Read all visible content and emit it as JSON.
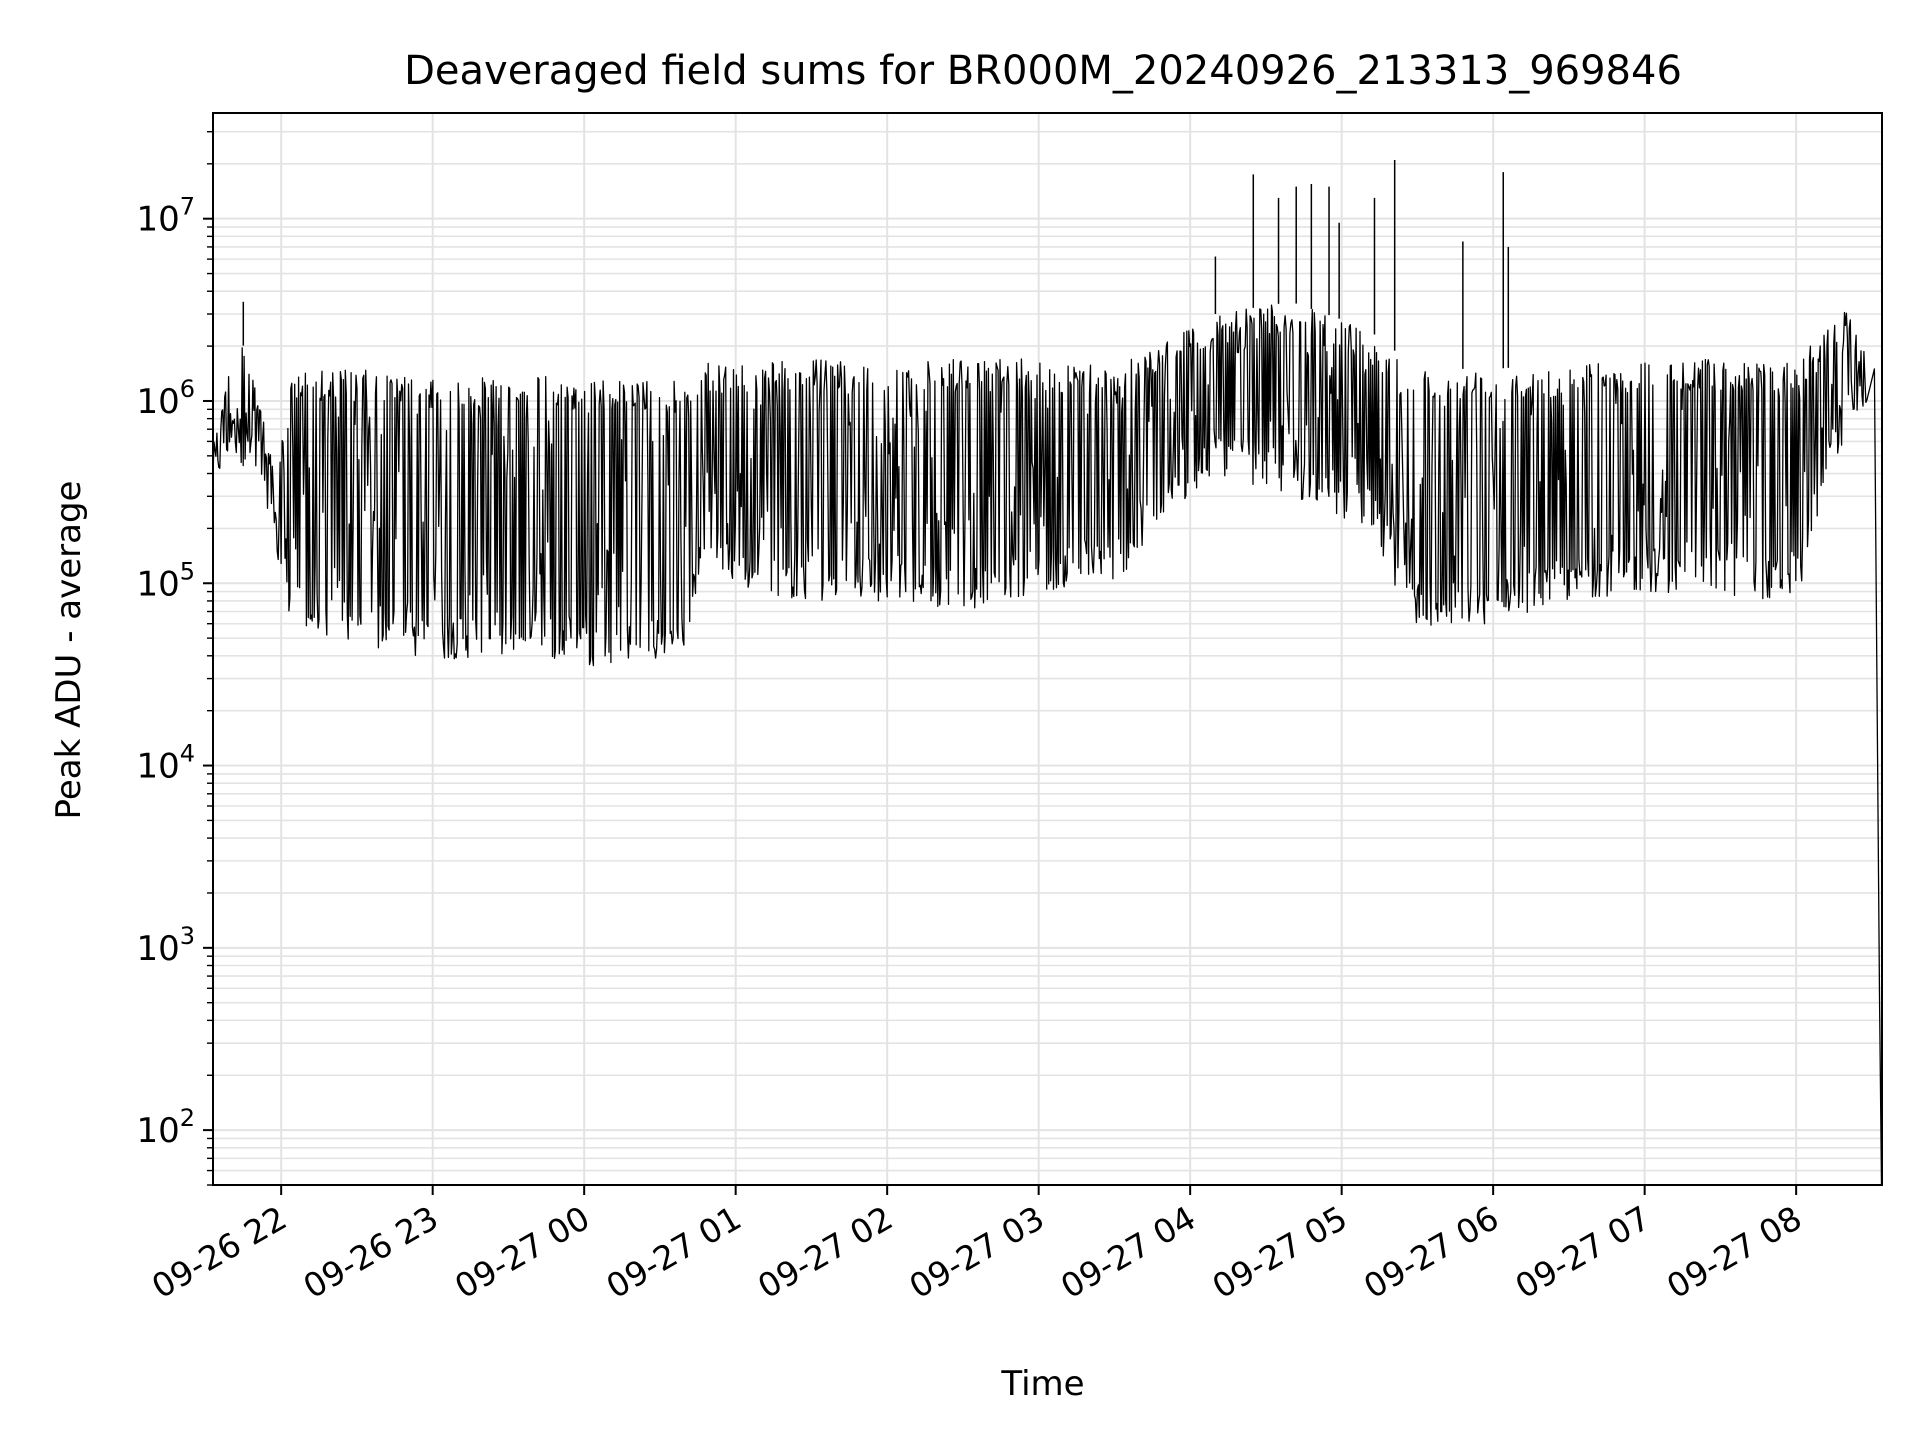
{
  "chart_data": {
    "type": "line",
    "title": "Deaveraged field sums for BR000M_20240926_213313_969846",
    "xlabel": "Time",
    "ylabel": "Peak ADU - average",
    "x_range": [
      "2024-09-26 21:33",
      "2024-09-27 08:34"
    ],
    "ylim": [
      50,
      38000000
    ],
    "yscale": "log",
    "grid": true,
    "line_color": "#000000",
    "xticks": [
      {
        "t": "2024-09-26 22:00",
        "label": "09-26 22"
      },
      {
        "t": "2024-09-26 23:00",
        "label": "09-26 23"
      },
      {
        "t": "2024-09-27 00:00",
        "label": "09-27 00"
      },
      {
        "t": "2024-09-27 01:00",
        "label": "09-27 01"
      },
      {
        "t": "2024-09-27 02:00",
        "label": "09-27 02"
      },
      {
        "t": "2024-09-27 03:00",
        "label": "09-27 03"
      },
      {
        "t": "2024-09-27 04:00",
        "label": "09-27 04"
      },
      {
        "t": "2024-09-27 05:00",
        "label": "09-27 05"
      },
      {
        "t": "2024-09-27 06:00",
        "label": "09-27 06"
      },
      {
        "t": "2024-09-27 07:00",
        "label": "09-27 07"
      },
      {
        "t": "2024-09-27 08:00",
        "label": "09-27 08"
      }
    ],
    "yticks": [
      {
        "v": 100,
        "base": "10",
        "exp": "2"
      },
      {
        "v": 1000,
        "base": "10",
        "exp": "3"
      },
      {
        "v": 10000,
        "base": "10",
        "exp": "4"
      },
      {
        "v": 100000,
        "base": "10",
        "exp": "5"
      },
      {
        "v": 1000000,
        "base": "10",
        "exp": "6"
      },
      {
        "v": 10000000,
        "base": "10",
        "exp": "7"
      }
    ],
    "series": [
      {
        "envelope": [
          {
            "t": "2024-09-26 21:33",
            "low": 330000,
            "high": 600000
          },
          {
            "t": "2024-09-26 21:42",
            "low": 500000,
            "high": 2400000
          },
          {
            "t": "2024-09-26 21:50",
            "low": 350000,
            "high": 1500000
          },
          {
            "t": "2024-09-26 21:57",
            "low": 150000,
            "high": 400000
          },
          {
            "t": "2024-09-26 22:05",
            "low": 55000,
            "high": 1500000
          },
          {
            "t": "2024-09-26 22:30",
            "low": 45000,
            "high": 1500000
          },
          {
            "t": "2024-09-26 23:00",
            "low": 38000,
            "high": 1300000
          },
          {
            "t": "2024-09-26 23:40",
            "low": 40000,
            "high": 1400000
          },
          {
            "t": "2024-09-27 00:00",
            "low": 35000,
            "high": 1300000
          },
          {
            "t": "2024-09-27 00:40",
            "low": 38000,
            "high": 1300000
          },
          {
            "t": "2024-09-27 00:45",
            "low": 100000,
            "high": 1600000
          },
          {
            "t": "2024-09-27 01:30",
            "low": 80000,
            "high": 1700000
          },
          {
            "t": "2024-09-27 02:00",
            "low": 80000,
            "high": 1600000
          },
          {
            "t": "2024-09-27 02:30",
            "low": 70000,
            "high": 1700000
          },
          {
            "t": "2024-09-27 03:00",
            "low": 90000,
            "high": 1700000
          },
          {
            "t": "2024-09-27 03:30",
            "low": 100000,
            "high": 1600000
          },
          {
            "t": "2024-09-27 04:10",
            "low": 400000,
            "high": 3000000
          },
          {
            "t": "2024-09-27 04:40",
            "low": 300000,
            "high": 3500000
          },
          {
            "t": "2024-09-27 05:10",
            "low": 200000,
            "high": 2500000
          },
          {
            "t": "2024-09-27 05:30",
            "low": 55000,
            "high": 1500000
          },
          {
            "t": "2024-09-27 06:00",
            "low": 60000,
            "high": 1500000
          },
          {
            "t": "2024-09-27 06:30",
            "low": 80000,
            "high": 1600000
          },
          {
            "t": "2024-09-27 07:00",
            "low": 90000,
            "high": 1700000
          },
          {
            "t": "2024-09-27 07:30",
            "low": 85000,
            "high": 1700000
          },
          {
            "t": "2024-09-27 08:00",
            "low": 80000,
            "high": 1700000
          },
          {
            "t": "2024-09-27 08:20",
            "low": 700000,
            "high": 3200000
          },
          {
            "t": "2024-09-27 08:28",
            "low": 900000,
            "high": 2000000
          }
        ],
        "spikes": [
          {
            "t": "2024-09-26 21:45",
            "value": 3500000
          },
          {
            "t": "2024-09-27 04:10",
            "value": 6200000
          },
          {
            "t": "2024-09-27 04:25",
            "value": 17500000
          },
          {
            "t": "2024-09-27 04:35",
            "value": 13000000
          },
          {
            "t": "2024-09-27 04:42",
            "value": 15000000
          },
          {
            "t": "2024-09-27 04:48",
            "value": 15500000
          },
          {
            "t": "2024-09-27 04:55",
            "value": 15000000
          },
          {
            "t": "2024-09-27 04:59",
            "value": 9500000
          },
          {
            "t": "2024-09-27 05:13",
            "value": 13000000
          },
          {
            "t": "2024-09-27 05:21",
            "value": 21000000
          },
          {
            "t": "2024-09-27 05:48",
            "value": 7500000
          },
          {
            "t": "2024-09-27 06:04",
            "value": 18000000
          },
          {
            "t": "2024-09-27 06:06",
            "value": 7000000
          }
        ],
        "tail": [
          {
            "t": "2024-09-27 08:31",
            "value": 1500000
          },
          {
            "t": "2024-09-27 08:33",
            "value": 550
          },
          {
            "t": "2024-09-27 08:33.5",
            "value": 50
          }
        ]
      }
    ]
  }
}
